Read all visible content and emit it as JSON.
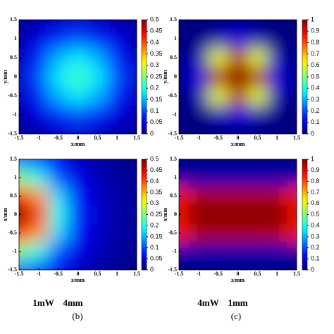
{
  "chart_data": [
    {
      "type": "heatmap",
      "colormap": "jet",
      "xlabel": "x/mm",
      "ylabel": "y/mm",
      "xlim": [
        -1.5,
        1.5
      ],
      "ylim": [
        -1.5,
        1.5
      ],
      "xticks": [
        -1.5,
        -1,
        -0.5,
        0,
        0.5,
        1,
        1.5
      ],
      "yticks": [
        -1.5,
        -1,
        -0.5,
        0,
        0.5,
        1,
        1.5
      ],
      "x": [
        -1.5,
        -1,
        -0.5,
        0,
        0.5,
        1,
        1.5
      ],
      "y": [
        -1.5,
        -1,
        -0.5,
        0,
        0.5,
        1,
        1.5
      ],
      "z": [
        [
          0.01,
          0.02,
          0.03,
          0.04,
          0.03,
          0.02,
          0.01
        ],
        [
          0.02,
          0.05,
          0.08,
          0.1,
          0.08,
          0.05,
          0.02
        ],
        [
          0.03,
          0.08,
          0.15,
          0.18,
          0.15,
          0.08,
          0.03
        ],
        [
          0.04,
          0.1,
          0.18,
          0.22,
          0.18,
          0.1,
          0.04
        ],
        [
          0.03,
          0.08,
          0.15,
          0.18,
          0.15,
          0.08,
          0.03
        ],
        [
          0.02,
          0.05,
          0.08,
          0.1,
          0.08,
          0.05,
          0.02
        ],
        [
          0.01,
          0.02,
          0.03,
          0.04,
          0.03,
          0.02,
          0.01
        ]
      ],
      "zlim": [
        0,
        0.5
      ],
      "zticks": [
        0,
        0.05,
        0.1,
        0.15,
        0.2,
        0.25,
        0.3,
        0.35,
        0.4,
        0.45,
        0.5
      ]
    },
    {
      "type": "heatmap",
      "colormap": "jet",
      "xlabel": "x/mm",
      "ylabel": "y/mm",
      "xlim": [
        -1.5,
        1.5
      ],
      "ylim": [
        -1.5,
        1.5
      ],
      "xticks": [
        -1.5,
        -1,
        -0.5,
        0,
        0.5,
        1,
        1.5
      ],
      "yticks": [
        -1.5,
        -1,
        -0.5,
        0,
        0.5,
        1,
        1.5
      ],
      "x": [
        -1.5,
        -1,
        -0.5,
        0,
        0.5,
        1,
        1.5
      ],
      "y": [
        -1.5,
        -1,
        -0.5,
        0,
        0.5,
        1,
        1.5
      ],
      "z": [
        [
          0,
          0,
          0,
          0,
          0,
          0,
          0
        ],
        [
          0,
          0,
          0.05,
          0.1,
          0.05,
          0,
          0
        ],
        [
          0,
          0.05,
          0.6,
          0.95,
          0.6,
          0.05,
          0
        ],
        [
          0,
          0.1,
          0.95,
          1,
          0.95,
          0.1,
          0
        ],
        [
          0,
          0.05,
          0.6,
          0.95,
          0.6,
          0.05,
          0
        ],
        [
          0,
          0,
          0.05,
          0.1,
          0.05,
          0,
          0
        ],
        [
          0,
          0,
          0,
          0,
          0,
          0,
          0
        ]
      ],
      "zlim": [
        0,
        1
      ],
      "zticks": [
        0,
        0.1,
        0.2,
        0.3,
        0.4,
        0.5,
        0.6,
        0.7,
        0.8,
        0.9,
        1
      ]
    },
    {
      "type": "heatmap",
      "colormap": "jet",
      "xlabel": "z/mm",
      "ylabel": "x/mm",
      "xlim": [
        -1.5,
        1.5
      ],
      "ylim": [
        -1.5,
        1.5
      ],
      "xticks": [
        -1.5,
        -1,
        -0.5,
        0,
        0.5,
        1,
        1.5
      ],
      "yticks": [
        -1.5,
        -1,
        -0.5,
        0,
        0.5,
        1,
        1.5
      ],
      "x": [
        -1.5,
        -1,
        -0.5,
        0,
        0.5,
        1,
        1.5
      ],
      "y": [
        -1.5,
        -1,
        -0.5,
        0,
        0.5,
        1,
        1.5
      ],
      "z": [
        [
          0.12,
          0.1,
          0.06,
          0.035,
          0.02,
          0.01,
          0.005
        ],
        [
          0.25,
          0.2,
          0.1,
          0.05,
          0.03,
          0.015,
          0.01
        ],
        [
          0.42,
          0.36,
          0.17,
          0.07,
          0.035,
          0.02,
          0.01
        ],
        [
          0.5,
          0.42,
          0.2,
          0.08,
          0.04,
          0.02,
          0.01
        ],
        [
          0.42,
          0.36,
          0.17,
          0.07,
          0.035,
          0.02,
          0.01
        ],
        [
          0.25,
          0.2,
          0.1,
          0.05,
          0.03,
          0.015,
          0.01
        ],
        [
          0.12,
          0.1,
          0.06,
          0.035,
          0.02,
          0.01,
          0.005
        ]
      ],
      "zlim": [
        0,
        0.5
      ],
      "zticks": [
        0,
        0.05,
        0.1,
        0.15,
        0.2,
        0.25,
        0.3,
        0.35,
        0.4,
        0.45,
        0.5
      ]
    },
    {
      "type": "heatmap",
      "colormap": "jet",
      "xlabel": "z/mm",
      "ylabel": "x/mm",
      "xlim": [
        -1.5,
        1.5
      ],
      "ylim": [
        -1.5,
        1.5
      ],
      "xticks": [
        -1.5,
        -1,
        -0.5,
        0,
        0.5,
        1,
        1.5
      ],
      "yticks": [
        -1.5,
        -1,
        -0.5,
        0,
        0.5,
        1,
        1.5
      ],
      "x": [
        -1.5,
        -1,
        -0.5,
        0,
        0.5,
        1,
        1.5
      ],
      "y": [
        -1.5,
        -1,
        -0.5,
        0,
        0.5,
        1,
        1.5
      ],
      "z": [
        [
          0,
          0,
          0,
          0,
          0,
          0,
          0
        ],
        [
          0.05,
          0.05,
          0.05,
          0.05,
          0.05,
          0.05,
          0.05
        ],
        [
          0.85,
          0.95,
          0.95,
          0.95,
          0.95,
          0.95,
          0.85
        ],
        [
          0.9,
          1,
          1,
          1,
          1,
          1,
          0.9
        ],
        [
          0.85,
          0.95,
          0.95,
          0.95,
          0.95,
          0.95,
          0.85
        ],
        [
          0.05,
          0.05,
          0.05,
          0.05,
          0.05,
          0.05,
          0.05
        ],
        [
          0,
          0,
          0,
          0,
          0,
          0,
          0
        ]
      ],
      "zlim": [
        0,
        1
      ],
      "zticks": [
        0,
        0.1,
        0.2,
        0.3,
        0.4,
        0.5,
        0.6,
        0.7,
        0.8,
        0.9,
        1
      ]
    }
  ],
  "captions": [
    {
      "text": "1mW    4mm",
      "label": "(b)"
    },
    {
      "text": "4mW    1mm",
      "label": "(c)"
    }
  ]
}
